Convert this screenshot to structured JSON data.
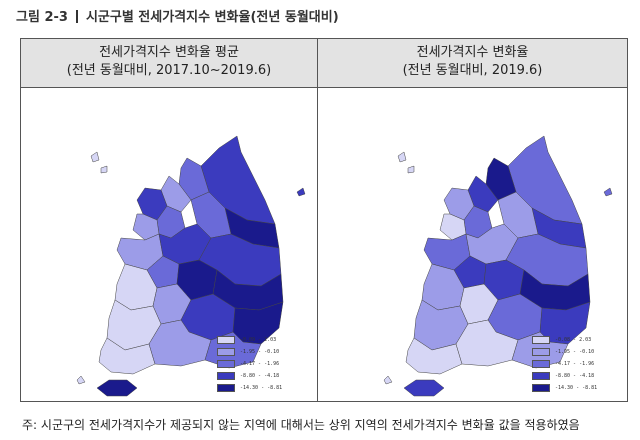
{
  "figure": {
    "label": "그림 2-3",
    "title": "시군구별 전세가격지수 변화율(전년 동월대비)"
  },
  "panels": [
    {
      "title": "전세가격지수 변화율 평균",
      "subtitle": "(전년 동월대비, 2017.10~2019.6)"
    },
    {
      "title": "전세가격지수 변화율",
      "subtitle": "(전년 동월대비, 2019.6)"
    }
  ],
  "legend_left": [
    {
      "label": "-0.09 - 2.03",
      "color": "#d6d6f5"
    },
    {
      "label": "-1.95 - -0.10",
      "color": "#9c9ce8"
    },
    {
      "label": "-4.17 - -1.96",
      "color": "#6a6ad8"
    },
    {
      "label": "-8.80 - -4.18",
      "color": "#3b3bbe"
    },
    {
      "label": "-14.30 - -8.81",
      "color": "#1a1a8c"
    }
  ],
  "legend_right": [
    {
      "label": "-0.08 - 2.03",
      "color": "#d6d6f5"
    },
    {
      "label": "-1.95 - -0.10",
      "color": "#9c9ce8"
    },
    {
      "label": "-4.17 - -1.96",
      "color": "#6a6ad8"
    },
    {
      "label": "-8.80 - -4.18",
      "color": "#3b3bbe"
    },
    {
      "label": "-14.30 - -8.81",
      "color": "#1a1a8c"
    }
  ],
  "note": "주: 시군구의 전세가격지수가 제공되지 않는 지역에 대해서는 상위 지역의 전세가격지수 변화율 값을 적용하였음"
}
